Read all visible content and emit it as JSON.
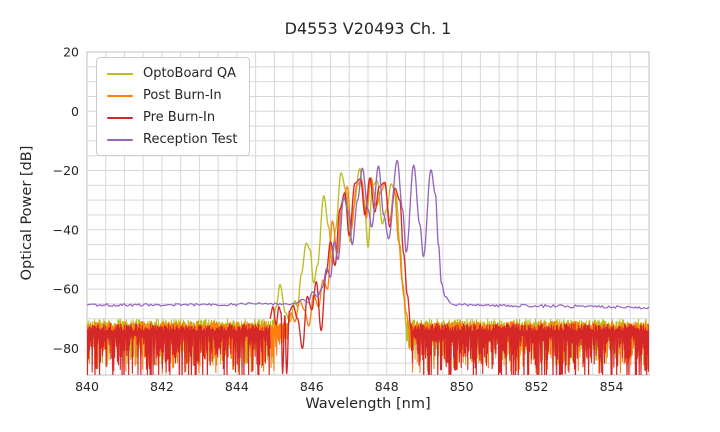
{
  "chart_data": {
    "type": "line",
    "title": "D4553 V20493 Ch. 1",
    "xlabel": "Wavelength [nm]",
    "ylabel": "Optical Power [dB]",
    "xlim": [
      840,
      855
    ],
    "ylim": [
      -89,
      20
    ],
    "xticks": {
      "values": [
        840,
        842,
        844,
        846,
        848,
        850,
        852,
        854
      ],
      "labels": [
        "840",
        "842",
        "844",
        "846",
        "848",
        "850",
        "852",
        "854"
      ]
    },
    "yticks": {
      "values": [
        20,
        0,
        -20,
        -40,
        -60,
        -80
      ],
      "labels": [
        "20",
        "0",
        "−20",
        "−40",
        "−60",
        "−80"
      ]
    },
    "minor_x_step": 0.5,
    "minor_y_step": 5,
    "grid": true,
    "grid_color": "#d8d8d8",
    "border_color": "#cccccc",
    "text_color": "#262626",
    "legend_position": "upper-left",
    "series": [
      {
        "name": "OptoBoard QA",
        "color": "#bcbd22",
        "noise": [
          {
            "x0": 840.0,
            "x1": 844.95,
            "top": -71.8,
            "depth": 12
          },
          {
            "x0": 848.52,
            "x1": 855.0,
            "top": -71.8,
            "depth": 12
          }
        ],
        "profile": [
          [
            844.95,
            -72.5
          ],
          [
            845.05,
            -66
          ],
          [
            845.15,
            -58.5
          ],
          [
            845.3,
            -68
          ],
          [
            845.42,
            -71
          ],
          [
            845.55,
            -64
          ],
          [
            845.62,
            -66
          ],
          [
            845.72,
            -55
          ],
          [
            845.85,
            -44.5
          ],
          [
            845.95,
            -46.5
          ],
          [
            846.05,
            -58
          ],
          [
            846.15,
            -52
          ],
          [
            846.32,
            -28.5
          ],
          [
            846.45,
            -39
          ],
          [
            846.55,
            -52
          ],
          [
            846.63,
            -40
          ],
          [
            846.78,
            -20.8
          ],
          [
            846.92,
            -27
          ],
          [
            847.02,
            -44
          ],
          [
            847.12,
            -32
          ],
          [
            847.28,
            -19.4
          ],
          [
            847.4,
            -30
          ],
          [
            847.5,
            -46
          ],
          [
            847.62,
            -25
          ],
          [
            847.75,
            -23.5
          ],
          [
            847.88,
            -38
          ],
          [
            848.0,
            -33
          ],
          [
            848.12,
            -24.5
          ],
          [
            848.25,
            -28
          ],
          [
            848.35,
            -45
          ],
          [
            848.45,
            -62
          ],
          [
            848.52,
            -72.5
          ]
        ]
      },
      {
        "name": "Post Burn-In",
        "color": "#ff7f0e",
        "noise": [
          {
            "x0": 840.0,
            "x1": 845.35,
            "top": -72.6,
            "depth": 14
          },
          {
            "x0": 848.6,
            "x1": 855.0,
            "top": -72.6,
            "depth": 14
          }
        ],
        "profile": [
          [
            845.35,
            -73
          ],
          [
            845.45,
            -68
          ],
          [
            845.55,
            -71
          ],
          [
            845.68,
            -64
          ],
          [
            845.8,
            -67
          ],
          [
            845.92,
            -72.5
          ],
          [
            846.05,
            -62
          ],
          [
            846.18,
            -66
          ],
          [
            846.3,
            -57
          ],
          [
            846.42,
            -60
          ],
          [
            846.55,
            -37
          ],
          [
            846.68,
            -48
          ],
          [
            846.8,
            -31
          ],
          [
            846.95,
            -25.5
          ],
          [
            847.05,
            -40
          ],
          [
            847.2,
            -25
          ],
          [
            847.33,
            -23.3
          ],
          [
            847.45,
            -36
          ],
          [
            847.58,
            -22.5
          ],
          [
            847.72,
            -32
          ],
          [
            847.85,
            -27
          ],
          [
            847.95,
            -24.5
          ],
          [
            848.08,
            -37
          ],
          [
            848.2,
            -26.5
          ],
          [
            848.32,
            -44
          ],
          [
            848.42,
            -58
          ],
          [
            848.52,
            -68
          ],
          [
            848.6,
            -73.5
          ]
        ]
      },
      {
        "name": "Pre Burn-In",
        "color": "#d62728",
        "noise": [
          {
            "x0": 840.0,
            "x1": 844.88,
            "top": -73.4,
            "depth": 17
          },
          {
            "x0": 848.65,
            "x1": 855.0,
            "top": -73.4,
            "depth": 17
          }
        ],
        "profile": [
          [
            844.88,
            -70
          ],
          [
            844.96,
            -66
          ],
          [
            845.05,
            -72
          ],
          [
            845.12,
            -66
          ],
          [
            845.18,
            -68
          ],
          [
            845.22,
            -88.5
          ],
          [
            845.28,
            -69
          ],
          [
            845.33,
            -88.5
          ],
          [
            845.4,
            -67.5
          ],
          [
            845.5,
            -65.5
          ],
          [
            845.62,
            -70
          ],
          [
            845.75,
            -80
          ],
          [
            845.88,
            -62.5
          ],
          [
            846.0,
            -67
          ],
          [
            846.12,
            -57.5
          ],
          [
            846.25,
            -74
          ],
          [
            846.38,
            -55
          ],
          [
            846.5,
            -44
          ],
          [
            846.62,
            -52
          ],
          [
            846.75,
            -33
          ],
          [
            846.88,
            -27.5
          ],
          [
            847.0,
            -42
          ],
          [
            847.15,
            -24.3
          ],
          [
            847.3,
            -22.8
          ],
          [
            847.42,
            -35
          ],
          [
            847.55,
            -22.5
          ],
          [
            847.68,
            -34
          ],
          [
            847.8,
            -25.5
          ],
          [
            847.95,
            -24
          ],
          [
            848.08,
            -39
          ],
          [
            848.22,
            -26
          ],
          [
            848.35,
            -30
          ],
          [
            848.45,
            -48
          ],
          [
            848.55,
            -62
          ],
          [
            848.65,
            -73.5
          ]
        ]
      },
      {
        "name": "Reception Test",
        "color": "#9467bd",
        "flat": [
          {
            "x0": 840.0,
            "x1": 845.55,
            "y0": -65.4,
            "y1": -65.0,
            "amp": 1.0
          },
          {
            "x0": 849.72,
            "x1": 855.0,
            "y0": -65.3,
            "y1": -66.2,
            "amp": 1.0
          }
        ],
        "profile": [
          [
            845.55,
            -65.0
          ],
          [
            845.75,
            -63.5
          ],
          [
            845.9,
            -64.5
          ],
          [
            846.02,
            -61
          ],
          [
            846.15,
            -62.5
          ],
          [
            846.28,
            -59.5
          ],
          [
            846.4,
            -53
          ],
          [
            846.5,
            -56
          ],
          [
            846.6,
            -44
          ],
          [
            846.7,
            -50
          ],
          [
            846.85,
            -29
          ],
          [
            846.98,
            -34
          ],
          [
            847.08,
            -45
          ],
          [
            847.22,
            -30
          ],
          [
            847.35,
            -19.2
          ],
          [
            847.5,
            -33
          ],
          [
            847.6,
            -39
          ],
          [
            847.78,
            -18.5
          ],
          [
            847.92,
            -35
          ],
          [
            848.05,
            -43
          ],
          [
            848.28,
            -16.6
          ],
          [
            848.42,
            -33
          ],
          [
            848.52,
            -47.5
          ],
          [
            848.72,
            -18.2
          ],
          [
            848.88,
            -38
          ],
          [
            848.98,
            -49
          ],
          [
            849.18,
            -19.8
          ],
          [
            849.3,
            -28
          ],
          [
            849.38,
            -45
          ],
          [
            849.46,
            -58
          ],
          [
            849.56,
            -62.5
          ],
          [
            849.72,
            -64.8
          ]
        ]
      }
    ]
  }
}
